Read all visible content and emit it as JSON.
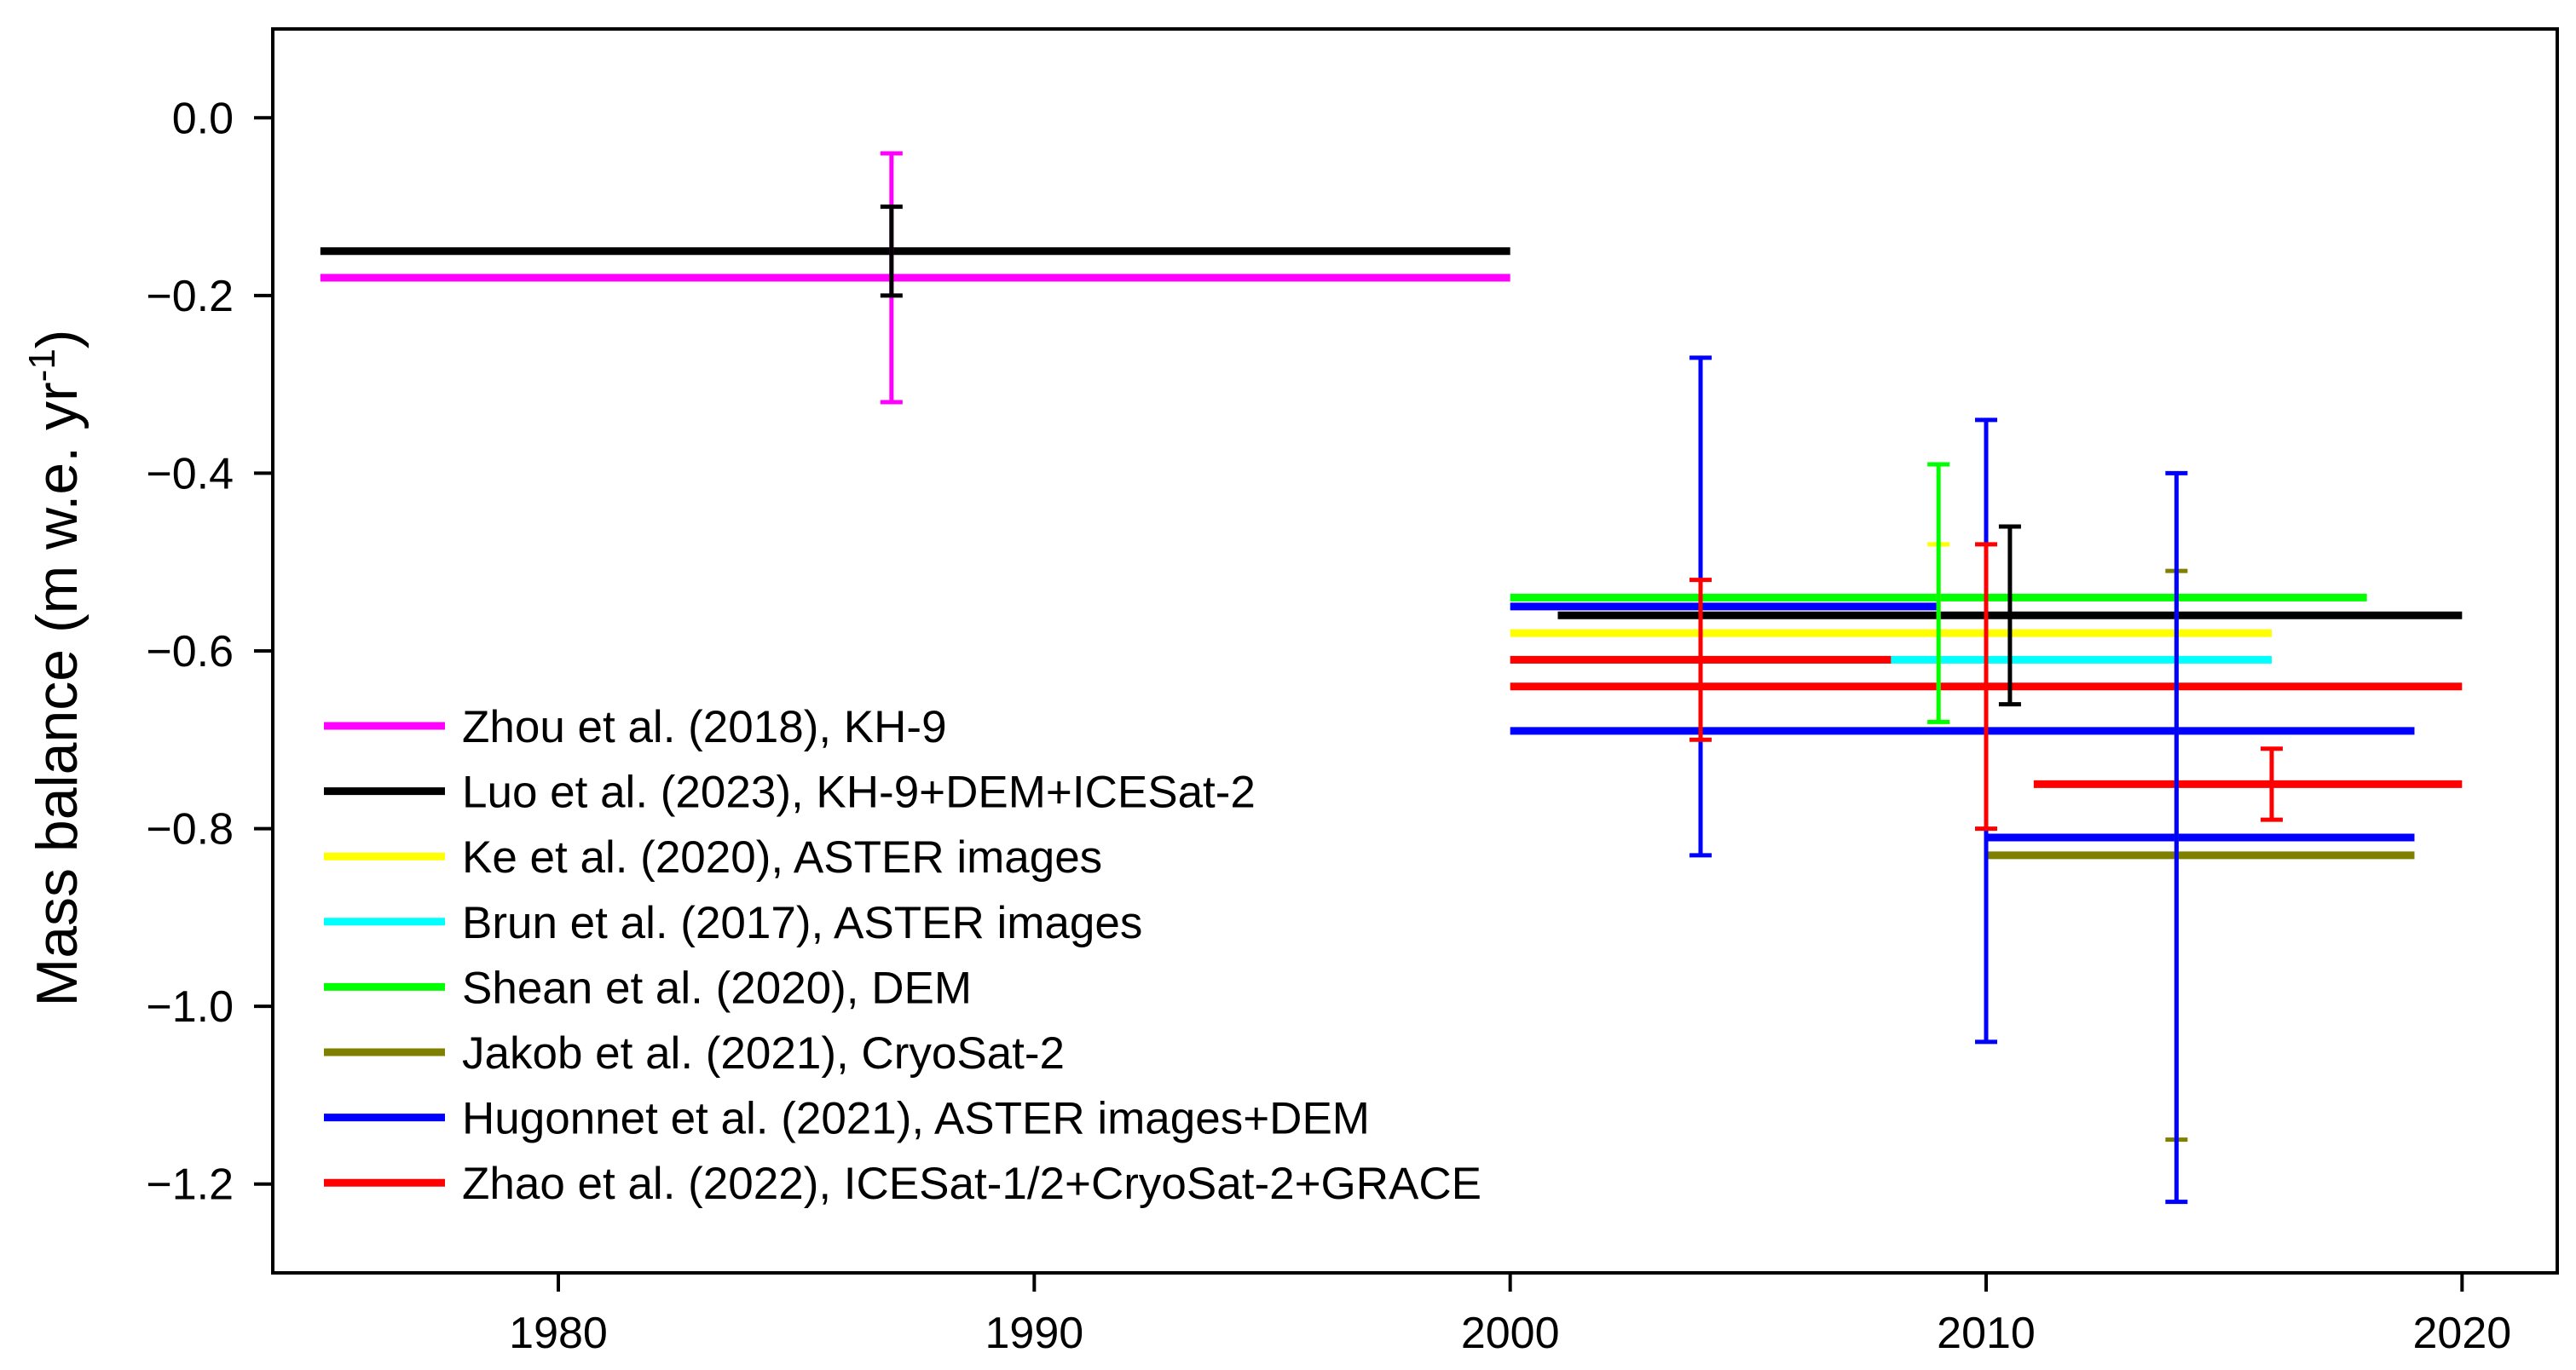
{
  "chart_data": {
    "type": "scatter",
    "title": "",
    "xlabel": "",
    "ylabel": "Mass balance (m w.e. yr",
    "ylabel_superscript": "-1",
    "ylabel_suffix": ")",
    "xlim": [
      1974,
      2022
    ],
    "ylim": [
      -1.3,
      0.1
    ],
    "xticks": [
      1980,
      1990,
      2000,
      2010,
      2020
    ],
    "xtick_labels": [
      "1980",
      "1990",
      "2000",
      "2010",
      "2020"
    ],
    "yticks": [
      0.0,
      -0.2,
      -0.4,
      -0.6,
      -0.8,
      -1.0,
      -1.2
    ],
    "ytick_labels": [
      "0.0",
      "−0.2",
      "−0.4",
      "−0.6",
      "−0.8",
      "−1.0",
      "−1.2"
    ],
    "grid": false,
    "legend_position": "bottom-left",
    "series": [
      {
        "name": "Zhou et al. (2018), KH-9",
        "color": "#ff00ff",
        "segments": [
          {
            "x_start": 1975,
            "x_end": 2000,
            "value": -0.18
          }
        ],
        "error_bars": [
          {
            "x": 1987,
            "low": -0.32,
            "high": -0.04
          }
        ]
      },
      {
        "name": "Luo et al. (2023), KH-9+DEM+ICESat-2",
        "color": "#000000",
        "segments": [
          {
            "x_start": 1975,
            "x_end": 2000,
            "value": -0.15
          },
          {
            "x_start": 2001,
            "x_end": 2020,
            "value": -0.56
          }
        ],
        "error_bars": [
          {
            "x": 1987,
            "low": -0.2,
            "high": -0.1
          },
          {
            "x": 2010.5,
            "low": -0.66,
            "high": -0.46
          }
        ]
      },
      {
        "name": "Ke et al. (2020), ASTER images",
        "color": "#ffff00",
        "segments": [
          {
            "x_start": 2000,
            "x_end": 2016,
            "value": -0.58
          }
        ],
        "error_bars": [
          {
            "x": 2009,
            "low": -0.68,
            "high": -0.48
          }
        ]
      },
      {
        "name": "Brun et al. (2017), ASTER images",
        "color": "#00ffff",
        "segments": [
          {
            "x_start": 2000,
            "x_end": 2016,
            "value": -0.61
          }
        ],
        "error_bars": []
      },
      {
        "name": "Shean et al. (2020), DEM",
        "color": "#00ff00",
        "segments": [
          {
            "x_start": 2000,
            "x_end": 2018,
            "value": -0.54
          }
        ],
        "error_bars": [
          {
            "x": 2009,
            "low": -0.68,
            "high": -0.39
          }
        ]
      },
      {
        "name": "Jakob et al. (2021), CryoSat-2",
        "color": "#808000",
        "segments": [
          {
            "x_start": 2010,
            "x_end": 2019,
            "value": -0.83
          }
        ],
        "error_bars": [
          {
            "x": 2014,
            "low": -1.15,
            "high": -0.51
          }
        ]
      },
      {
        "name": "Hugonnet et al. (2021), ASTER images+DEM",
        "color": "#0000ff",
        "segments": [
          {
            "x_start": 2000,
            "x_end": 2019,
            "value": -0.69
          },
          {
            "x_start": 2000,
            "x_end": 2009,
            "value": -0.55
          },
          {
            "x_start": 2010,
            "x_end": 2019,
            "value": -0.81
          }
        ],
        "error_bars": [
          {
            "x": 2004,
            "low": -0.83,
            "high": -0.27
          },
          {
            "x": 2010,
            "low": -1.04,
            "high": -0.34
          },
          {
            "x": 2014,
            "low": -1.22,
            "high": -0.4
          }
        ]
      },
      {
        "name": "Zhao et al. (2022), ICESat-1/2+CryoSat-2+GRACE",
        "color": "#ff0000",
        "segments": [
          {
            "x_start": 2000,
            "x_end": 2008,
            "value": -0.61
          },
          {
            "x_start": 2000,
            "x_end": 2020,
            "value": -0.64
          },
          {
            "x_start": 2011,
            "x_end": 2020,
            "value": -0.75
          }
        ],
        "error_bars": [
          {
            "x": 2004,
            "low": -0.7,
            "high": -0.52
          },
          {
            "x": 2010,
            "low": -0.8,
            "high": -0.48
          },
          {
            "x": 2016,
            "low": -0.79,
            "high": -0.71
          }
        ]
      }
    ]
  }
}
